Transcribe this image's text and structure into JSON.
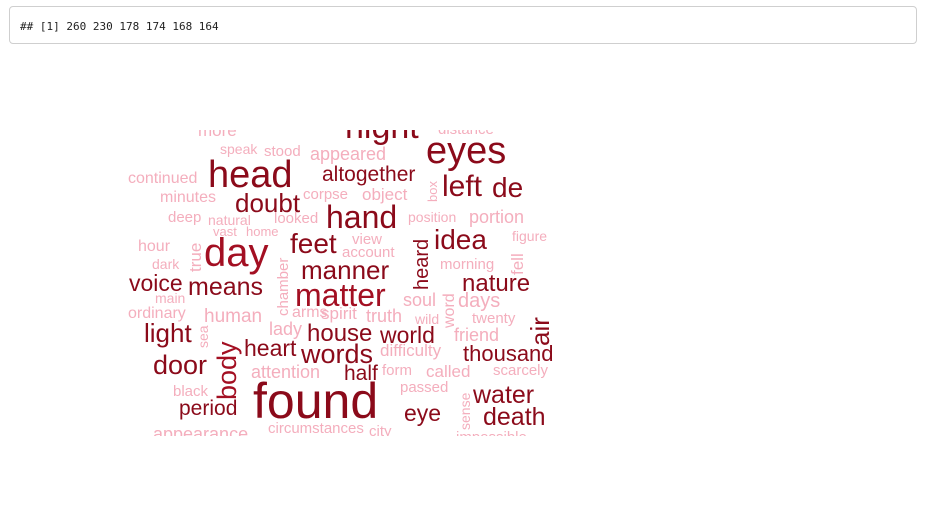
{
  "console_output": {
    "text": "## [1] 260 230 178 174 168 164"
  },
  "colors": {
    "dark": "#8b0a1a",
    "medium": "#a30f22",
    "light": "#f4aebd"
  },
  "wordcloud": {
    "words": [
      {
        "id": "more",
        "text": "more"
      },
      {
        "id": "night",
        "text": "night"
      },
      {
        "id": "distance",
        "text": "distance"
      },
      {
        "id": "eyes",
        "text": "eyes"
      },
      {
        "id": "speak",
        "text": "speak"
      },
      {
        "id": "stood",
        "text": "stood"
      },
      {
        "id": "appeared",
        "text": "appeared"
      },
      {
        "id": "continued",
        "text": "continued"
      },
      {
        "id": "head",
        "text": "head"
      },
      {
        "id": "altogether",
        "text": "altogether"
      },
      {
        "id": "box",
        "text": "box"
      },
      {
        "id": "left",
        "text": "left"
      },
      {
        "id": "de",
        "text": "de"
      },
      {
        "id": "minutes",
        "text": "minutes"
      },
      {
        "id": "corpse",
        "text": "corpse"
      },
      {
        "id": "object",
        "text": "object"
      },
      {
        "id": "doubt",
        "text": "doubt"
      },
      {
        "id": "deep",
        "text": "deep"
      },
      {
        "id": "natural",
        "text": "natural"
      },
      {
        "id": "looked",
        "text": "looked"
      },
      {
        "id": "hand",
        "text": "hand"
      },
      {
        "id": "position",
        "text": "position"
      },
      {
        "id": "portion",
        "text": "portion"
      },
      {
        "id": "vast",
        "text": "vast"
      },
      {
        "id": "home",
        "text": "home"
      },
      {
        "id": "figure",
        "text": "figure"
      },
      {
        "id": "hour",
        "text": "hour"
      },
      {
        "id": "true",
        "text": "true"
      },
      {
        "id": "day",
        "text": "day"
      },
      {
        "id": "chamber",
        "text": "chamber"
      },
      {
        "id": "feet",
        "text": "feet"
      },
      {
        "id": "view",
        "text": "view"
      },
      {
        "id": "account",
        "text": "account"
      },
      {
        "id": "heard",
        "text": "heard"
      },
      {
        "id": "idea",
        "text": "idea"
      },
      {
        "id": "fell",
        "text": "fell"
      },
      {
        "id": "dark",
        "text": "dark"
      },
      {
        "id": "manner",
        "text": "manner"
      },
      {
        "id": "morning",
        "text": "morning"
      },
      {
        "id": "voice",
        "text": "voice"
      },
      {
        "id": "means",
        "text": "means"
      },
      {
        "id": "matter",
        "text": "matter"
      },
      {
        "id": "nature",
        "text": "nature"
      },
      {
        "id": "main",
        "text": "main"
      },
      {
        "id": "soul",
        "text": "soul"
      },
      {
        "id": "word",
        "text": "word"
      },
      {
        "id": "days",
        "text": "days"
      },
      {
        "id": "ordinary",
        "text": "ordinary"
      },
      {
        "id": "human",
        "text": "human"
      },
      {
        "id": "arms",
        "text": "arms"
      },
      {
        "id": "spirit",
        "text": "spirit"
      },
      {
        "id": "truth",
        "text": "truth"
      },
      {
        "id": "wild",
        "text": "wild"
      },
      {
        "id": "twenty",
        "text": "twenty"
      },
      {
        "id": "air",
        "text": "air"
      },
      {
        "id": "light",
        "text": "light"
      },
      {
        "id": "sea",
        "text": "sea"
      },
      {
        "id": "lady",
        "text": "lady"
      },
      {
        "id": "house",
        "text": "house"
      },
      {
        "id": "world",
        "text": "world"
      },
      {
        "id": "friend",
        "text": "friend"
      },
      {
        "id": "body",
        "text": "body"
      },
      {
        "id": "heart",
        "text": "heart"
      },
      {
        "id": "words",
        "text": "words"
      },
      {
        "id": "difficulty",
        "text": "difficulty"
      },
      {
        "id": "thousand",
        "text": "thousand"
      },
      {
        "id": "door",
        "text": "door"
      },
      {
        "id": "attention",
        "text": "attention"
      },
      {
        "id": "half",
        "text": "half"
      },
      {
        "id": "form",
        "text": "form"
      },
      {
        "id": "called",
        "text": "called"
      },
      {
        "id": "scarcely",
        "text": "scarcely"
      },
      {
        "id": "black",
        "text": "black"
      },
      {
        "id": "found",
        "text": "found"
      },
      {
        "id": "passed",
        "text": "passed"
      },
      {
        "id": "sense",
        "text": "sense"
      },
      {
        "id": "water",
        "text": "water"
      },
      {
        "id": "period",
        "text": "period"
      },
      {
        "id": "eye",
        "text": "eye"
      },
      {
        "id": "death",
        "text": "death"
      },
      {
        "id": "appearance",
        "text": "appearance"
      },
      {
        "id": "circumstances",
        "text": "circumstances"
      },
      {
        "id": "city",
        "text": "city"
      },
      {
        "id": "impossible",
        "text": "impossible"
      }
    ]
  }
}
